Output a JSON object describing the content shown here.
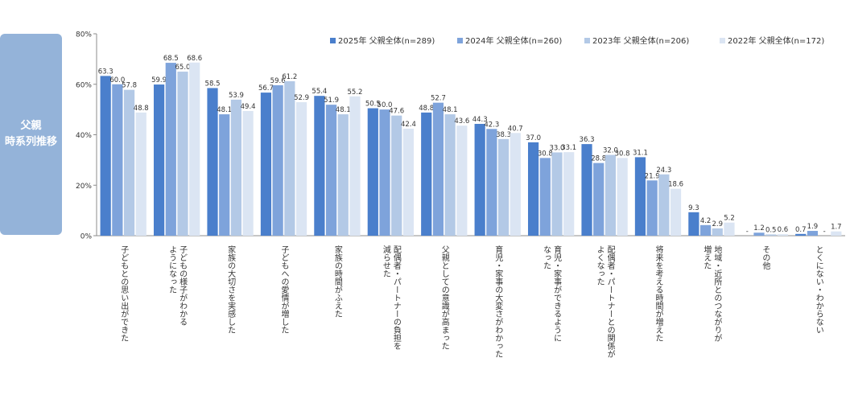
{
  "side_label": {
    "line1": "父親",
    "line2": "時系列推移"
  },
  "colors": {
    "s2025": "#4a7fcc",
    "s2024": "#7ea3db",
    "s2023": "#b3c9e6",
    "s2022": "#dbe5f3",
    "axis": "#8c8c8c",
    "text": "#333333",
    "side_bg": "#94b3d9"
  },
  "chart_data": {
    "type": "bar",
    "title": "",
    "xlabel": "",
    "ylabel": "",
    "ylim": [
      0,
      80
    ],
    "yticks": [
      0,
      20,
      40,
      60,
      80
    ],
    "ytick_labels": [
      "0%",
      "20%",
      "40%",
      "60%",
      "80%"
    ],
    "legend_position": "top-right",
    "categories": [
      "子どもとの思い出ができた",
      "子どもの様子がわかるようになった",
      "家族の大切さを実感した",
      "子どもへの愛情が増した",
      "家族の時間がふえた",
      "配偶者・パートナーの負担を減らせた",
      "父親としての意識が高まった",
      "育児・家事の大変さがわかった",
      "育児・家事ができるようになった",
      "配偶者・パートナーとの関係がよくなった",
      "将来を考える時間が増えた",
      "地域・近所とのつながりが増えた",
      "その他",
      "とくにない・わからない"
    ],
    "category_label_lines": [
      [
        "子どもとの思い出ができた"
      ],
      [
        "子どもの様子がわかる",
        "ようになった"
      ],
      [
        "家族の大切さを実感した"
      ],
      [
        "子どもへの愛情が増した"
      ],
      [
        "家族の時間がふえた"
      ],
      [
        "配偶者・パートナーの負担を",
        "減らせた"
      ],
      [
        "父親としての意識が高まった"
      ],
      [
        "育児・家事の大変さがわかった"
      ],
      [
        "育児・家事ができるように",
        "なった"
      ],
      [
        "配偶者・パートナーとの関係が",
        "よくなった"
      ],
      [
        "将来を考える時間が増えた"
      ],
      [
        "地域・近所とのつながりが",
        "増えた"
      ],
      [
        "その他"
      ],
      [
        "とくにない・わからない"
      ]
    ],
    "series": [
      {
        "name": "2025年 父親全体(n=289)",
        "color": "#4a7fcc",
        "values": [
          63.3,
          59.9,
          58.5,
          56.7,
          55.4,
          50.5,
          48.8,
          44.3,
          37.0,
          36.3,
          31.1,
          9.3,
          null,
          0.7
        ],
        "labels": [
          "63.3",
          "59.9",
          "58.5",
          "56.7",
          "55.4",
          "50.5",
          "48.8",
          "44.3",
          "37.0",
          "36.3",
          "31.1",
          "9.3",
          "-",
          "0.7"
        ]
      },
      {
        "name": "2024年 父親全体(n=260)",
        "color": "#7ea3db",
        "values": [
          60.0,
          68.5,
          48.1,
          59.6,
          51.9,
          50.0,
          52.7,
          42.3,
          30.8,
          28.8,
          21.9,
          4.2,
          1.2,
          1.9
        ],
        "labels": [
          "60.0",
          "68.5",
          "48.1",
          "59.6",
          "51.9",
          "50.0",
          "52.7",
          "42.3",
          "30.8",
          "28.8",
          "21.9",
          "4.2",
          "1.2",
          "1.9"
        ]
      },
      {
        "name": "2023年 父親全体(n=206)",
        "color": "#b3c9e6",
        "values": [
          57.8,
          65.0,
          53.9,
          61.2,
          48.1,
          47.6,
          48.1,
          38.3,
          33.0,
          32.0,
          24.3,
          2.9,
          0.5,
          null
        ],
        "labels": [
          "57.8",
          "65.0",
          "53.9",
          "61.2",
          "48.1",
          "47.6",
          "48.1",
          "38.3",
          "33.0",
          "32.0",
          "24.3",
          "2.9",
          "0.5",
          "-"
        ]
      },
      {
        "name": "2022年 父親全体(n=172)",
        "color": "#dbe5f3",
        "values": [
          48.8,
          68.6,
          49.4,
          52.9,
          55.2,
          42.4,
          43.6,
          40.7,
          33.1,
          30.8,
          18.6,
          5.2,
          0.6,
          1.7
        ],
        "labels": [
          "48.8",
          "68.6",
          "49.4",
          "52.9",
          "55.2",
          "42.4",
          "43.6",
          "40.7",
          "33.1",
          "30.8",
          "18.6",
          "5.2",
          "0.6",
          "1.7"
        ]
      }
    ]
  }
}
